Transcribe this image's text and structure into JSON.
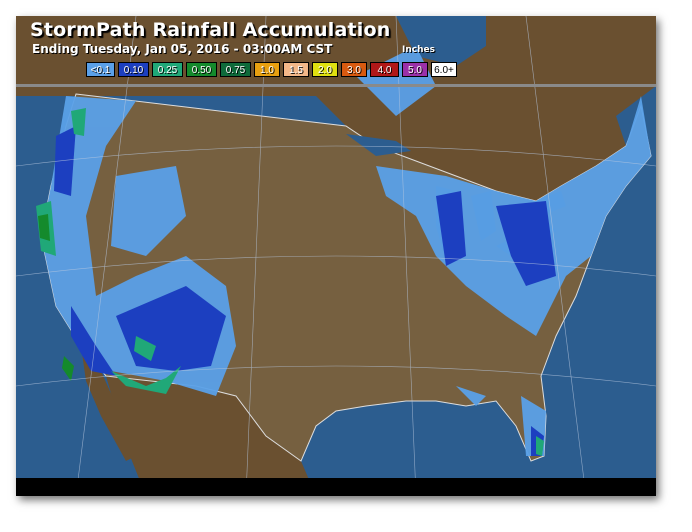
{
  "header": {
    "title": "StormPath Rainfall Accumulation",
    "subtitle": "Ending Tuesday, Jan 05, 2016 - 03:00AM CST",
    "units": "Inches"
  },
  "legend": [
    {
      "label": "<0.1",
      "color": "#5aa0e8",
      "text": "#fff"
    },
    {
      "label": "0.10",
      "color": "#1c3fc0",
      "text": "#fff"
    },
    {
      "label": "0.25",
      "color": "#20a878",
      "text": "#fff"
    },
    {
      "label": "0.50",
      "color": "#148a2c",
      "text": "#fff"
    },
    {
      "label": "0.75",
      "color": "#0e6a3a",
      "text": "#fff"
    },
    {
      "label": "1.0",
      "color": "#e8a010",
      "text": "#fff"
    },
    {
      "label": "1.5",
      "color": "#f4b888",
      "text": "#fff"
    },
    {
      "label": "2.0",
      "color": "#e0e010",
      "text": "#fff"
    },
    {
      "label": "3.0",
      "color": "#d85a10",
      "text": "#fff"
    },
    {
      "label": "4.0",
      "color": "#b01818",
      "text": "#fff"
    },
    {
      "label": "5.0",
      "color": "#9a30a8",
      "text": "#fff"
    },
    {
      "label": "6.0+",
      "color": "#ffffff",
      "text": "#000"
    }
  ],
  "colors": {
    "ocean": "#2c5d8f",
    "land": "#6a5030",
    "us_land": "#766040",
    "lakes": "#2c5d8f"
  }
}
